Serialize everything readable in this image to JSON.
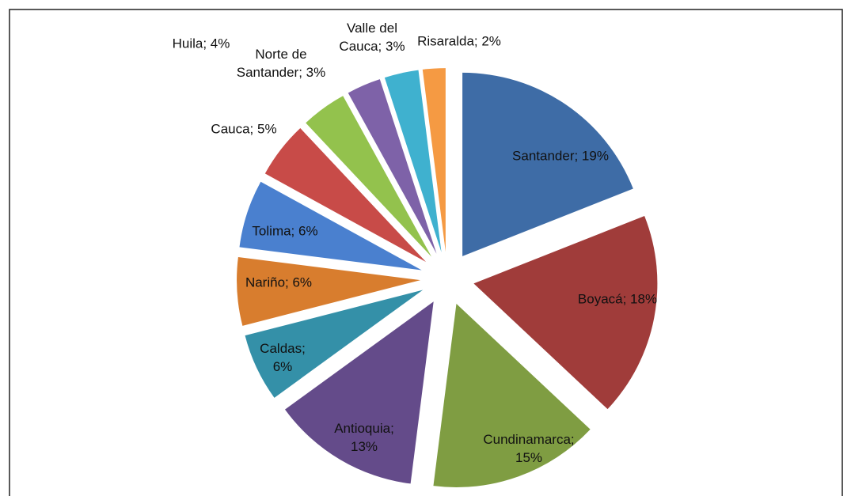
{
  "chart_data": {
    "type": "pie",
    "categories": [
      "Santander",
      "Boyacá",
      "Cundinamarca",
      "Antioquia",
      "Caldas",
      "Nariño",
      "Tolima",
      "Cauca",
      "Huila",
      "Norte de Santander",
      "Valle del Cauca",
      "Risaralda"
    ],
    "values": [
      19,
      18,
      15,
      13,
      6,
      6,
      6,
      5,
      4,
      3,
      3,
      2
    ],
    "value_labels": [
      "Santander; 19%",
      "Boyacá; 18%",
      "Cundinamarca;\n15%",
      "Antioquia;\n13%",
      "Caldas;\n6%",
      "Nariño; 6%",
      "Tolima; 6%",
      "Cauca; 5%",
      "Huila; 4%",
      "Norte de\nSantander; 3%",
      "Valle del\nCauca; 3%",
      "Risaralda; 2%"
    ],
    "colors": [
      "#3e6ca6",
      "#a03c3a",
      "#7f9d42",
      "#644b8a",
      "#3490a8",
      "#d87d2e",
      "#4a80cf",
      "#c84b48",
      "#93c24d",
      "#7e62a8",
      "#3fb1cf",
      "#f59a43"
    ]
  }
}
